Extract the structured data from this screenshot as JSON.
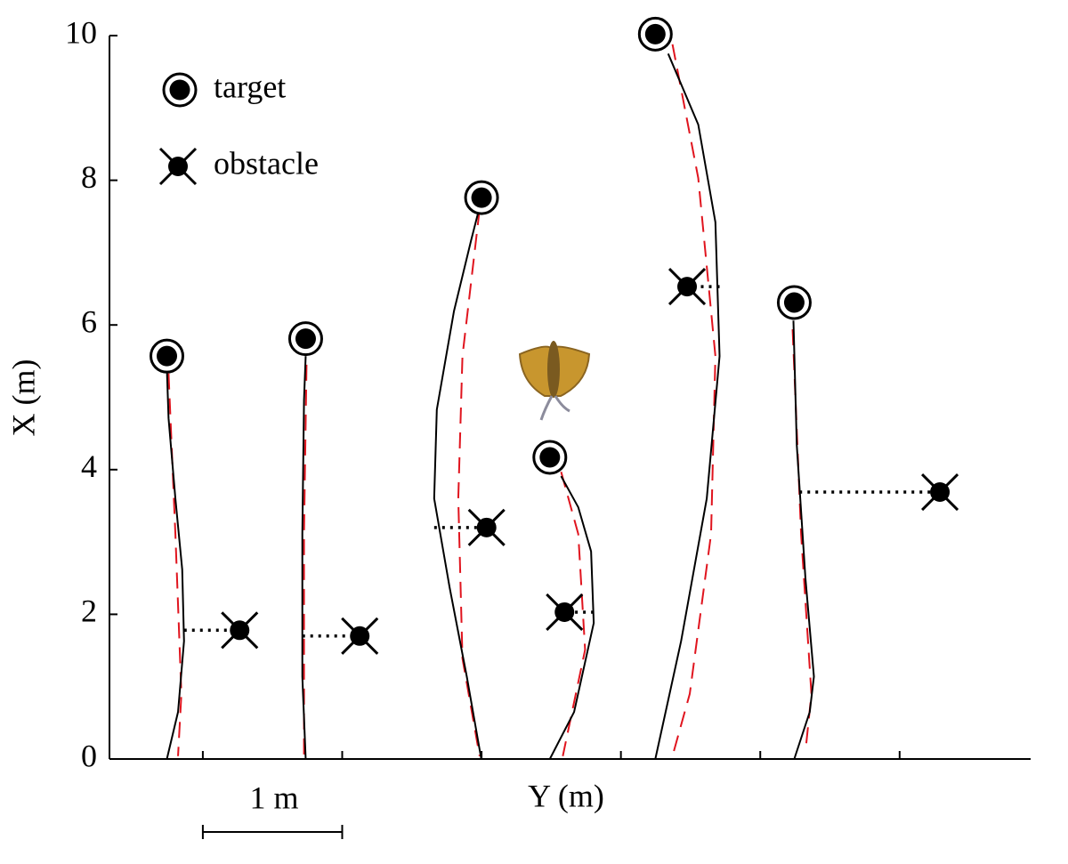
{
  "chart_data": {
    "type": "trajectory",
    "ylabel": "X (m)",
    "xlabel": "Y (m)",
    "ylim": [
      0,
      10
    ],
    "yticks": [
      0,
      2,
      4,
      6,
      8,
      10
    ],
    "xlim": [
      0.33,
      6.94
    ],
    "xticks": [
      1,
      2,
      3,
      4,
      5,
      6
    ],
    "legend": {
      "target": "target",
      "obstacle": "obstacle"
    },
    "scale_bar": {
      "length": 1,
      "label": "1 m"
    },
    "path_color": "#000000",
    "plan_color": "#e0141e",
    "trials": [
      {
        "path": {
          "x": [
            0.742,
            0.822,
            0.865,
            0.852,
            0.803,
            0.754,
            0.742
          ],
          "values": [
            0,
            0.65,
            1.63,
            2.62,
            3.6,
            4.71,
            5.39
          ]
        },
        "plan": {
          "x": [
            0.754,
            0.803,
            0.846,
            0.822
          ],
          "values": [
            5.33,
            3.11,
            0.9,
            0.04
          ]
        },
        "target": {
          "x": 0.742,
          "value": 5.57
        },
        "obstacle": {
          "x": 1.264,
          "value": 1.78
        },
        "link_x": 0.865
      },
      {
        "path": {
          "x": [
            1.738,
            1.714,
            1.714,
            1.726,
            1.738
          ],
          "values": [
            0,
            1.14,
            3.11,
            4.96,
            5.57
          ]
        },
        "plan": {
          "x": [
            1.744,
            1.726,
            1.726
          ],
          "values": [
            5.45,
            3.11,
            0.04
          ]
        },
        "target": {
          "x": 1.738,
          "value": 5.81
        },
        "obstacle": {
          "x": 2.126,
          "value": 1.7
        },
        "link_x": 1.714
      },
      {
        "path": {
          "x": [
            2.998,
            2.894,
            2.771,
            2.66,
            2.679,
            2.802,
            2.925,
            2.974
          ],
          "values": [
            0,
            1.14,
            2.37,
            3.6,
            4.83,
            6.19,
            7.17,
            7.54
          ]
        },
        "plan": {
          "x": [
            2.986,
            2.863,
            2.833,
            2.863,
            2.986
          ],
          "values": [
            7.6,
            5.57,
            3.6,
            1.39,
            0.04
          ]
        },
        "target": {
          "x": 3.0,
          "value": 7.76
        },
        "obstacle": {
          "x": 3.036,
          "value": 3.2
        },
        "link_x": 2.66
      },
      {
        "path": {
          "x": [
            3.49,
            3.664,
            3.805,
            3.786,
            3.694,
            3.571
          ],
          "values": [
            0,
            0.65,
            1.88,
            2.87,
            3.48,
            3.91
          ]
        },
        "plan": {
          "x": [
            3.571,
            3.694,
            3.743,
            3.583
          ],
          "values": [
            3.97,
            3.11,
            1.51,
            0.04
          ]
        },
        "target": {
          "x": 3.49,
          "value": 4.17
        },
        "obstacle": {
          "x": 3.595,
          "value": 2.03
        },
        "link_x": 3.805
      },
      {
        "path": {
          "x": [
            4.247,
            4.432,
            4.616,
            4.708,
            4.678,
            4.555,
            4.339
          ],
          "values": [
            0,
            1.63,
            3.6,
            5.57,
            7.42,
            8.77,
            9.75
          ]
        },
        "plan": {
          "x": [
            4.37,
            4.555,
            4.678,
            4.647,
            4.494,
            4.37
          ],
          "values": [
            9.88,
            8.03,
            5.57,
            3.11,
            0.9,
            0.04
          ]
        },
        "target": {
          "x": 4.247,
          "value": 10.02
        },
        "obstacle": {
          "x": 4.475,
          "value": 6.53
        },
        "link_x": 4.708
      },
      {
        "path": {
          "x": [
            5.244,
            5.355,
            5.385,
            5.324,
            5.262,
            5.238
          ],
          "values": [
            0,
            0.65,
            1.14,
            2.5,
            4.34,
            6.06
          ]
        },
        "plan": {
          "x": [
            5.232,
            5.293,
            5.367,
            5.324
          ],
          "values": [
            5.94,
            3.11,
            0.9,
            0.1
          ]
        },
        "target": {
          "x": 5.244,
          "value": 6.31
        },
        "obstacle": {
          "x": 6.289,
          "value": 3.69
        },
        "link_x": 5.281
      }
    ]
  }
}
